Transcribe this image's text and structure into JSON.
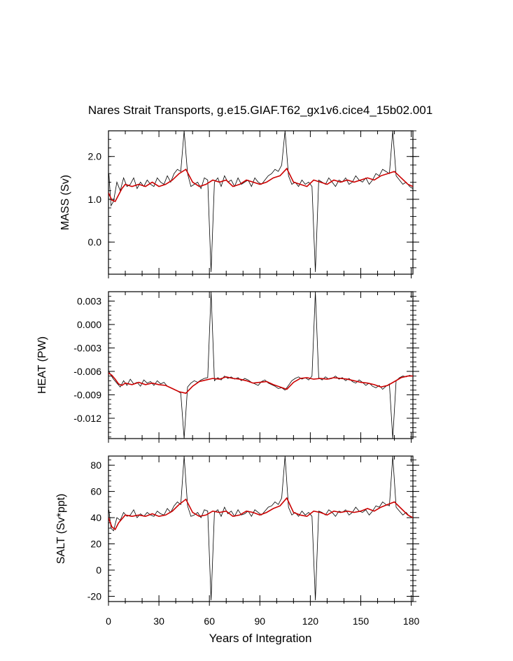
{
  "title": "Nares Strait Transports, g.e15.GIAF.T62_gx1v6.cice4_15b02.001",
  "xlabel": "Years of Integration",
  "colors": {
    "raw": "#000000",
    "smooth": "#cc0000",
    "axis": "#000000"
  },
  "chart_data": [
    {
      "type": "line",
      "ylabel": "MASS (Sv)",
      "xlim": [
        0,
        181
      ],
      "ylim": [
        -0.75,
        2.6
      ],
      "xticks": [
        "0",
        "30",
        "60",
        "90",
        "120",
        "150",
        "180"
      ],
      "yticks": [
        "0.0",
        "1.0",
        "2.0"
      ],
      "ytick_values": [
        0.0,
        1.0,
        2.0
      ],
      "series": [
        {
          "role": "monthly",
          "x": [
            0.25,
            1.5,
            3,
            5,
            7,
            9,
            11,
            13,
            15,
            17,
            19,
            21,
            23,
            25,
            27,
            29,
            31,
            33,
            35,
            37,
            39,
            41,
            43,
            45,
            47,
            49,
            51,
            53,
            55,
            57,
            59,
            61,
            63,
            65,
            67,
            69,
            71,
            73,
            75,
            77,
            79,
            81,
            83,
            85,
            87,
            89,
            91,
            93,
            95,
            97,
            99,
            101,
            103,
            105,
            107,
            109,
            111,
            113,
            115,
            117,
            119,
            121,
            123,
            125,
            127,
            129,
            131,
            133,
            135,
            137,
            139,
            141,
            143,
            145,
            147,
            149,
            151,
            153,
            155,
            157,
            159,
            161,
            163,
            165,
            167,
            169,
            171,
            173,
            175,
            177,
            179,
            181
          ],
          "values": [
            1.6,
            0.85,
            0.95,
            1.4,
            1.2,
            1.5,
            1.3,
            1.35,
            1.5,
            1.25,
            1.4,
            1.3,
            1.45,
            1.35,
            1.3,
            1.5,
            1.4,
            1.35,
            1.55,
            1.4,
            1.6,
            1.7,
            1.65,
            2.6,
            1.6,
            1.3,
            1.35,
            1.4,
            1.25,
            1.5,
            1.45,
            -0.7,
            1.4,
            1.5,
            1.3,
            1.55,
            1.4,
            1.45,
            1.3,
            1.5,
            1.35,
            1.4,
            1.45,
            1.3,
            1.5,
            1.4,
            1.35,
            1.45,
            1.55,
            1.6,
            1.7,
            1.65,
            1.8,
            2.6,
            1.55,
            1.35,
            1.4,
            1.3,
            1.45,
            1.35,
            1.4,
            1.3,
            -0.7,
            1.45,
            1.4,
            1.35,
            1.5,
            1.4,
            1.3,
            1.45,
            1.4,
            1.5,
            1.35,
            1.4,
            1.55,
            1.45,
            1.4,
            1.5,
            1.35,
            1.45,
            1.6,
            1.55,
            1.7,
            1.65,
            1.6,
            2.6,
            1.55,
            1.45,
            1.35,
            1.4,
            1.3,
            1.25
          ]
        },
        {
          "role": "smoothed",
          "x": [
            0,
            2,
            4,
            6,
            8,
            10,
            14,
            18,
            22,
            26,
            30,
            34,
            38,
            42,
            46,
            50,
            54,
            58,
            62,
            66,
            70,
            74,
            78,
            82,
            86,
            90,
            94,
            98,
            102,
            106,
            110,
            114,
            118,
            122,
            126,
            130,
            134,
            138,
            142,
            146,
            150,
            154,
            158,
            162,
            166,
            170,
            174,
            178,
            181
          ],
          "values": [
            1.15,
            0.98,
            0.95,
            1.1,
            1.25,
            1.35,
            1.3,
            1.35,
            1.3,
            1.4,
            1.3,
            1.35,
            1.45,
            1.6,
            1.7,
            1.4,
            1.3,
            1.35,
            1.45,
            1.4,
            1.45,
            1.3,
            1.35,
            1.45,
            1.4,
            1.35,
            1.4,
            1.5,
            1.55,
            1.72,
            1.4,
            1.35,
            1.3,
            1.45,
            1.4,
            1.35,
            1.45,
            1.4,
            1.45,
            1.4,
            1.45,
            1.5,
            1.45,
            1.55,
            1.6,
            1.65,
            1.5,
            1.35,
            1.3
          ]
        }
      ]
    },
    {
      "type": "line",
      "ylabel": "HEAT (PW)",
      "xlim": [
        0,
        181
      ],
      "ylim": [
        -0.0146,
        0.0042
      ],
      "xticks": [
        "0",
        "30",
        "60",
        "90",
        "120",
        "150",
        "180"
      ],
      "yticks": [
        "0.003",
        "0.000",
        "-0.003",
        "-0.006",
        "-0.009",
        "-0.012"
      ],
      "ytick_values": [
        0.003,
        0.0,
        -0.003,
        -0.006,
        -0.009,
        -0.012
      ],
      "series": [
        {
          "role": "monthly",
          "x": [
            0.25,
            1.5,
            3,
            5,
            7,
            9,
            11,
            13,
            15,
            17,
            19,
            21,
            23,
            25,
            27,
            29,
            31,
            33,
            35,
            37,
            39,
            41,
            43,
            45,
            47,
            49,
            51,
            53,
            55,
            57,
            59,
            61,
            63,
            65,
            67,
            69,
            71,
            73,
            75,
            77,
            79,
            81,
            83,
            85,
            87,
            89,
            91,
            93,
            95,
            97,
            99,
            101,
            103,
            105,
            107,
            109,
            111,
            113,
            115,
            117,
            119,
            121,
            123,
            125,
            127,
            129,
            131,
            133,
            135,
            137,
            139,
            141,
            143,
            145,
            147,
            149,
            151,
            153,
            155,
            157,
            159,
            161,
            163,
            165,
            167,
            169,
            171,
            173,
            175,
            177,
            179,
            181
          ],
          "values": [
            -0.006,
            -0.0065,
            -0.007,
            -0.0075,
            -0.008,
            -0.0072,
            -0.0078,
            -0.007,
            -0.0076,
            -0.0074,
            -0.0079,
            -0.0071,
            -0.0075,
            -0.0073,
            -0.0078,
            -0.0072,
            -0.0076,
            -0.0074,
            -0.0079,
            -0.0081,
            -0.0083,
            -0.0085,
            -0.0088,
            -0.0146,
            -0.008,
            -0.0075,
            -0.0072,
            -0.0074,
            -0.0071,
            -0.0069,
            -0.0068,
            0.0042,
            -0.0072,
            -0.0068,
            -0.0071,
            -0.0066,
            -0.0069,
            -0.0067,
            -0.007,
            -0.0068,
            -0.0072,
            -0.0069,
            -0.0071,
            -0.0074,
            -0.0076,
            -0.0078,
            -0.0073,
            -0.0071,
            -0.0075,
            -0.0077,
            -0.0079,
            -0.0082,
            -0.0081,
            -0.0084,
            -0.0078,
            -0.0072,
            -0.0069,
            -0.0067,
            -0.007,
            -0.0068,
            -0.0071,
            -0.0066,
            0.0042,
            -0.0068,
            -0.0071,
            -0.0067,
            -0.007,
            -0.0069,
            -0.0066,
            -0.007,
            -0.0068,
            -0.0072,
            -0.0069,
            -0.0073,
            -0.0075,
            -0.0071,
            -0.0074,
            -0.0078,
            -0.0075,
            -0.0079,
            -0.0081,
            -0.0078,
            -0.0083,
            -0.0079,
            -0.0076,
            -0.0146,
            -0.0072,
            -0.0068,
            -0.0066,
            -0.0067,
            -0.0065,
            -0.0066
          ]
        },
        {
          "role": "smoothed",
          "x": [
            0,
            2,
            4,
            6,
            8,
            10,
            14,
            18,
            22,
            26,
            30,
            34,
            38,
            42,
            46,
            50,
            54,
            58,
            62,
            66,
            70,
            74,
            78,
            82,
            86,
            90,
            94,
            98,
            102,
            106,
            110,
            114,
            118,
            122,
            126,
            130,
            134,
            138,
            142,
            146,
            150,
            154,
            158,
            162,
            166,
            170,
            174,
            178,
            181
          ],
          "values": [
            -0.0062,
            -0.0065,
            -0.007,
            -0.0076,
            -0.0078,
            -0.0075,
            -0.0077,
            -0.0074,
            -0.0077,
            -0.0075,
            -0.0077,
            -0.0078,
            -0.0082,
            -0.0086,
            -0.0088,
            -0.0079,
            -0.0073,
            -0.0071,
            -0.0069,
            -0.007,
            -0.0067,
            -0.0069,
            -0.007,
            -0.0072,
            -0.0075,
            -0.0074,
            -0.0073,
            -0.0077,
            -0.008,
            -0.0083,
            -0.0074,
            -0.0069,
            -0.0068,
            -0.007,
            -0.0069,
            -0.007,
            -0.0068,
            -0.0069,
            -0.007,
            -0.0072,
            -0.0074,
            -0.0075,
            -0.0077,
            -0.008,
            -0.0078,
            -0.0073,
            -0.0068,
            -0.0066,
            -0.0066
          ]
        }
      ]
    },
    {
      "type": "line",
      "ylabel": "SALT (Sv*ppt)",
      "xlabel": "Years of Integration",
      "xlim": [
        0,
        181
      ],
      "ylim": [
        -24,
        87
      ],
      "xticks": [
        "0",
        "30",
        "60",
        "90",
        "120",
        "150",
        "180"
      ],
      "yticks": [
        "80",
        "60",
        "40",
        "20",
        "0",
        "-20"
      ],
      "ytick_values": [
        80,
        60,
        40,
        20,
        0,
        -20
      ],
      "series": [
        {
          "role": "monthly",
          "x": [
            0.25,
            1.5,
            3,
            5,
            7,
            9,
            11,
            13,
            15,
            17,
            19,
            21,
            23,
            25,
            27,
            29,
            31,
            33,
            35,
            37,
            39,
            41,
            43,
            45,
            47,
            49,
            51,
            53,
            55,
            57,
            59,
            61,
            63,
            65,
            67,
            69,
            71,
            73,
            75,
            77,
            79,
            81,
            83,
            85,
            87,
            89,
            91,
            93,
            95,
            97,
            99,
            101,
            103,
            105,
            107,
            109,
            111,
            113,
            115,
            117,
            119,
            121,
            123,
            125,
            127,
            129,
            131,
            133,
            135,
            137,
            139,
            141,
            143,
            145,
            147,
            149,
            151,
            153,
            155,
            157,
            159,
            161,
            163,
            165,
            167,
            169,
            171,
            173,
            175,
            177,
            179,
            181
          ],
          "values": [
            46,
            32,
            30,
            40,
            38,
            44,
            41,
            42,
            46,
            40,
            43,
            41,
            44,
            42,
            41,
            45,
            43,
            42,
            47,
            44,
            49,
            52,
            50,
            87,
            49,
            41,
            42,
            44,
            40,
            46,
            45,
            -23,
            44,
            46,
            41,
            48,
            43,
            45,
            41,
            46,
            42,
            43,
            45,
            41,
            46,
            44,
            42,
            45,
            48,
            49,
            52,
            50,
            55,
            87,
            48,
            42,
            44,
            41,
            45,
            42,
            44,
            41,
            -23,
            45,
            44,
            42,
            46,
            44,
            41,
            45,
            44,
            46,
            42,
            44,
            48,
            45,
            44,
            46,
            42,
            45,
            49,
            48,
            52,
            50,
            49,
            87,
            48,
            45,
            42,
            44,
            41,
            40
          ]
        },
        {
          "role": "smoothed",
          "x": [
            0,
            2,
            4,
            6,
            8,
            10,
            14,
            18,
            22,
            26,
            30,
            34,
            38,
            42,
            46,
            50,
            54,
            58,
            62,
            66,
            70,
            74,
            78,
            82,
            86,
            90,
            94,
            98,
            102,
            106,
            110,
            114,
            118,
            122,
            126,
            130,
            134,
            138,
            142,
            146,
            150,
            154,
            158,
            162,
            166,
            170,
            174,
            178,
            181
          ],
          "values": [
            40,
            33,
            31,
            36,
            39,
            42,
            41,
            42,
            41,
            43,
            41,
            42,
            45,
            50,
            54,
            44,
            41,
            42,
            45,
            44,
            45,
            41,
            42,
            45,
            44,
            42,
            44,
            47,
            49,
            55,
            44,
            42,
            41,
            45,
            44,
            42,
            45,
            44,
            45,
            44,
            45,
            47,
            45,
            48,
            50,
            52,
            47,
            42,
            40
          ]
        }
      ]
    }
  ]
}
